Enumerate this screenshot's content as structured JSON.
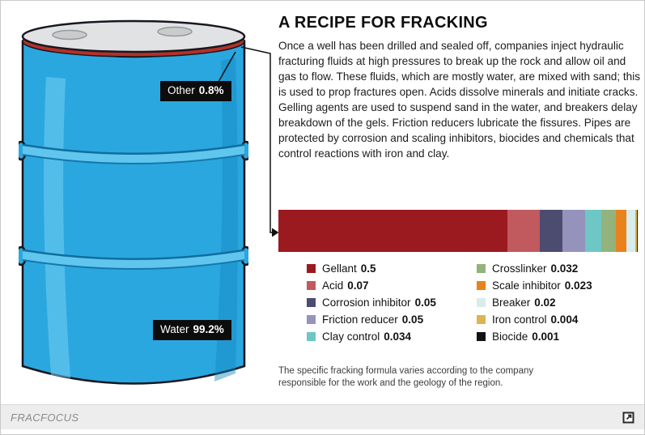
{
  "header": {
    "title": "A RECIPE FOR FRACKING"
  },
  "description": "Once a well has been drilled and sealed off, companies inject hydraulic fracturing fluids at high pressures to break up the rock and allow oil and gas to flow. These fluids, which are mostly water, are mixed with sand; this is used to prop fractures open. Acids dissolve minerals and initiate cracks. Gelling agents are used to suspend sand in the water, and breakers delay breakdown of the gels. Friction reducers lubricate the fissures. Pipes are protected by corrosion and scaling inhibitors, biocides and chemicals that control reactions with iron and clay.",
  "barrel": {
    "other_label": "Other",
    "other_value": "0.8%",
    "water_label": "Water",
    "water_value": "99.2%",
    "colors": {
      "body": "#2ba7e0",
      "lid": "#e0e2e4",
      "rim": "#b23129"
    }
  },
  "chart_data": {
    "type": "bar",
    "stacked": true,
    "orientation": "horizontal",
    "segments": [
      {
        "label": "Gellant",
        "value": 0.5,
        "display": "0.5",
        "color": "#9a1a20"
      },
      {
        "label": "Acid",
        "value": 0.07,
        "display": "0.07",
        "color": "#c05a5e"
      },
      {
        "label": "Corrosion inhibitor",
        "value": 0.05,
        "display": "0.05",
        "color": "#4c4b70"
      },
      {
        "label": "Friction reducer",
        "value": 0.05,
        "display": "0.05",
        "color": "#9593bb"
      },
      {
        "label": "Clay control",
        "value": 0.034,
        "display": "0.034",
        "color": "#6ec7c4"
      },
      {
        "label": "Crosslinker",
        "value": 0.032,
        "display": "0.032",
        "color": "#92b37b"
      },
      {
        "label": "Scale inhibitor",
        "value": 0.023,
        "display": "0.023",
        "color": "#e8821c"
      },
      {
        "label": "Breaker",
        "value": 0.02,
        "display": "0.02",
        "color": "#d8ece9"
      },
      {
        "label": "Iron control",
        "value": 0.004,
        "display": "0.004",
        "color": "#ddb44f"
      },
      {
        "label": "Biocide",
        "value": 0.001,
        "display": "0.001",
        "color": "#121216"
      }
    ],
    "legend_columns": [
      [
        0,
        1,
        2,
        3,
        4
      ],
      [
        5,
        6,
        7,
        8,
        9
      ]
    ]
  },
  "footnote": "The specific fracking formula varies according to the company responsible for the work and the geology of the region.",
  "footer": {
    "source": "FRACFOCUS"
  }
}
